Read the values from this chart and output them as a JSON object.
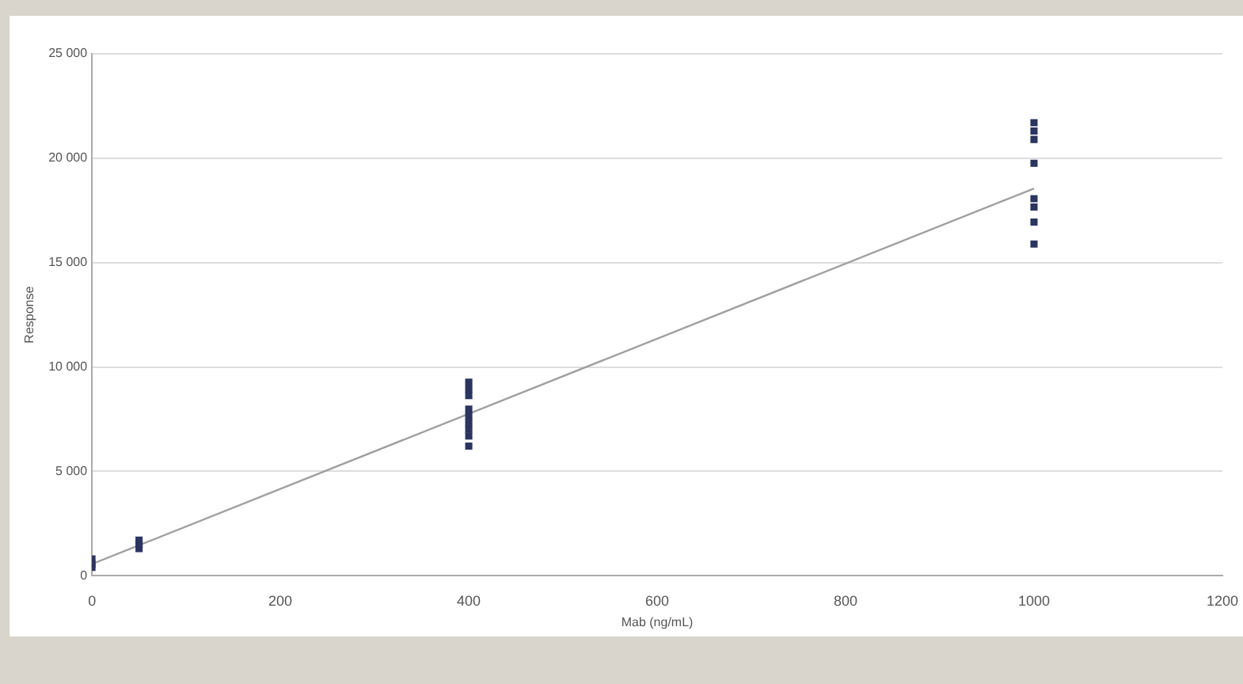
{
  "chart_data": {
    "type": "scatter",
    "xlabel": "Mab (ng/mL)",
    "ylabel": "Response",
    "xlim": [
      0,
      1200
    ],
    "xticks": [
      0,
      200,
      400,
      600,
      800,
      1000,
      1200
    ],
    "ylim": [
      0,
      25000
    ],
    "yticks": [
      {
        "value": 0,
        "label": "0"
      },
      {
        "value": 5000,
        "label": "5 000"
      },
      {
        "value": 10000,
        "label": "10 000"
      },
      {
        "value": 15000,
        "label": "15 000"
      },
      {
        "value": 20000,
        "label": "20 000"
      },
      {
        "value": 25000,
        "label": "25 000"
      }
    ],
    "grid": "y",
    "legend": false,
    "series": [
      {
        "type": "scatter",
        "marker": "square",
        "color": "#2b3560",
        "x": [
          0,
          0,
          0,
          50,
          50,
          50,
          400,
          400,
          400,
          400,
          400,
          400,
          400,
          400,
          400,
          1000,
          1000,
          1000,
          1000,
          1000,
          1000,
          1000,
          1000
        ],
        "values": [
          400,
          560,
          800,
          1300,
          1500,
          1700,
          6210,
          6690,
          7020,
          7340,
          7660,
          7980,
          8630,
          8950,
          9270,
          15890,
          16940,
          17660,
          18060,
          19760,
          20900,
          21300,
          21700
        ]
      },
      {
        "type": "line",
        "marker": "none",
        "color": "#a0a0a0",
        "x": [
          0,
          1000
        ],
        "values": [
          560,
          18550
        ]
      }
    ]
  }
}
